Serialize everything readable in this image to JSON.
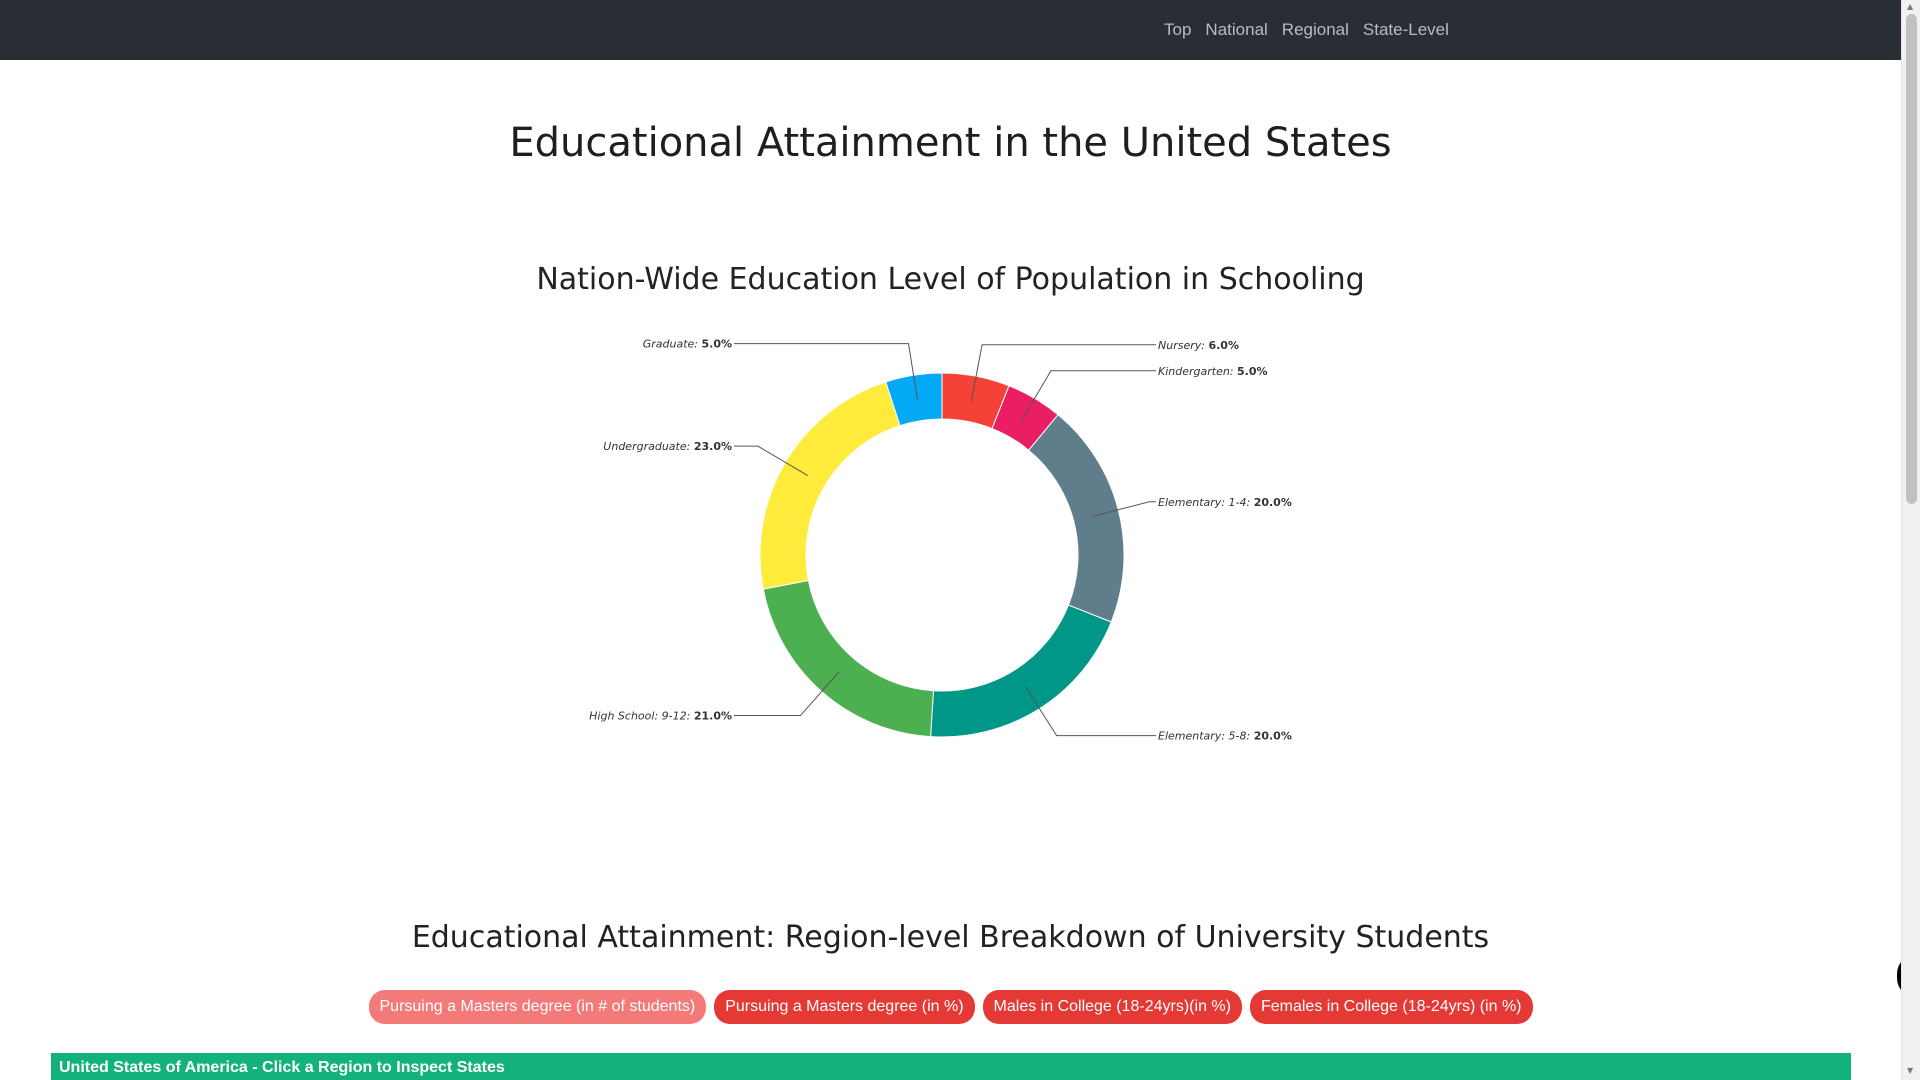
{
  "nav": {
    "links": [
      "Top",
      "National",
      "Regional",
      "State-Level"
    ]
  },
  "page": {
    "title": "Educational Attainment in the United States"
  },
  "chart_section": {
    "title": "Nation-Wide Education Level of Population in Schooling"
  },
  "chart_data": {
    "type": "pie",
    "title": "Nation-Wide Education Level of Population in Schooling",
    "categories": [
      "Nursery",
      "Kindergarten",
      "Elementary: 1-4",
      "Elementary: 5-8",
      "High School: 9-12",
      "Undergraduate",
      "Graduate"
    ],
    "values": [
      6.0,
      5.0,
      20.0,
      20.0,
      21.0,
      23.0,
      5.0
    ],
    "value_labels": [
      "6.0%",
      "5.0%",
      "20.0%",
      "20.0%",
      "21.0%",
      "23.0%",
      "5.0%"
    ],
    "colors": [
      "#f44336",
      "#e91e63",
      "#607d8b",
      "#009688",
      "#4caf50",
      "#ffeb3b",
      "#03a9f4"
    ],
    "legend": "none",
    "donut": true
  },
  "region_section": {
    "title": "Educational Attainment: Region-level Breakdown of University Students",
    "buttons": [
      "Pursuing a Masters degree (in # of students)",
      "Pursuing a Masters degree (in %)",
      "Males in College (18-24yrs)(in %)",
      "Females in College (18-24yrs) (in %)"
    ],
    "button_colors": [
      "#f47a7a",
      "#e53935",
      "#e53935",
      "#e53935"
    ],
    "map_header": "United States of America - Click a Region to Inspect States"
  },
  "colors": {
    "navbar": "#292d34",
    "map_header": "#14b27b"
  },
  "icons": {
    "side_toggle": "chevron-left-icon"
  }
}
